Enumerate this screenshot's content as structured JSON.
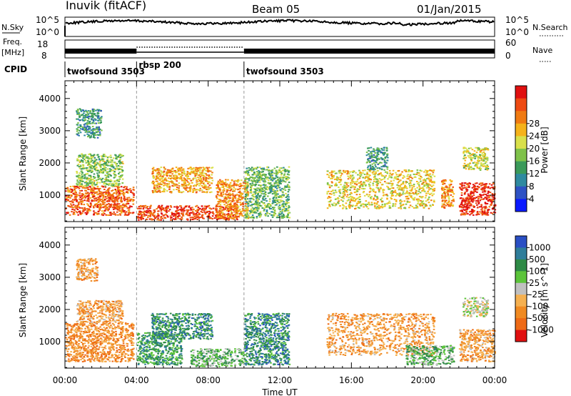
{
  "header": {
    "title": "Inuvik (fitACF)",
    "beam": "Beam 05",
    "date": "01/Jan/2015"
  },
  "noise_panel": {
    "left_label": "N.Sky",
    "left_top_tick": "10^5",
    "left_bottom_tick": "10^0",
    "right_label": "N.Search",
    "right_top_tick": "10^5",
    "right_bottom_tick": "10^0"
  },
  "freq_panel": {
    "left_label_line1": "Freq.",
    "left_label_line2": "[MHz]",
    "left_top_tick": "18",
    "left_bottom_tick": "8",
    "right_label": "Nave",
    "right_top_tick": "60",
    "right_bottom_tick": "0"
  },
  "cpid_panel": {
    "label": "CPID",
    "segments": [
      {
        "name": "twofsound 3503",
        "start_hour": 0,
        "end_hour": 4
      },
      {
        "name": "rbsp 200",
        "start_hour": 4,
        "end_hour": 10
      },
      {
        "name": "twofsound 3503",
        "start_hour": 10,
        "end_hour": 24
      }
    ]
  },
  "chart_data": [
    {
      "type": "heatmap",
      "quantity": "power",
      "ylabel": "Slant Range [km]",
      "xlabel": "Time UT",
      "xlim": [
        0,
        24
      ],
      "ylim": [
        180,
        4550
      ],
      "x_ticks": [
        "00:00",
        "04:00",
        "08:00",
        "12:00",
        "16:00",
        "20:00",
        "00:00"
      ],
      "y_ticks": [
        1000,
        2000,
        3000,
        4000
      ],
      "colorbar": {
        "label": "Power [dB]",
        "ticks": [
          "4",
          "8",
          "12",
          "16",
          "20",
          "24",
          "28"
        ],
        "colors": [
          "#0a1aff",
          "#2e52c4",
          "#2f8aa0",
          "#3b9a5a",
          "#7fc24a",
          "#d9e04a",
          "#f5b21a",
          "#f07a12",
          "#ee4a12",
          "#e01010"
        ]
      },
      "regions": [
        {
          "t_start": 0.0,
          "t_end": 3.8,
          "r_start": 400,
          "r_end": 1300,
          "level": 0.85
        },
        {
          "t_start": 0.6,
          "t_end": 3.2,
          "r_start": 1300,
          "r_end": 2300,
          "level": 0.45
        },
        {
          "t_start": 0.6,
          "t_end": 2.0,
          "r_start": 2800,
          "r_end": 3700,
          "level": 0.3
        },
        {
          "t_start": 4.0,
          "t_end": 9.6,
          "r_start": 250,
          "r_end": 700,
          "level": 0.9
        },
        {
          "t_start": 4.8,
          "t_end": 8.2,
          "r_start": 1100,
          "r_end": 1900,
          "level": 0.7
        },
        {
          "t_start": 8.4,
          "t_end": 10.2,
          "r_start": 300,
          "r_end": 1500,
          "level": 0.75
        },
        {
          "t_start": 10.0,
          "t_end": 12.5,
          "r_start": 300,
          "r_end": 1900,
          "level": 0.4
        },
        {
          "t_start": 14.6,
          "t_end": 20.6,
          "r_start": 600,
          "r_end": 1800,
          "level": 0.6
        },
        {
          "t_start": 16.8,
          "t_end": 18.0,
          "r_start": 1800,
          "r_end": 2500,
          "level": 0.3
        },
        {
          "t_start": 21.0,
          "t_end": 21.7,
          "r_start": 600,
          "r_end": 1500,
          "level": 0.75
        },
        {
          "t_start": 22.0,
          "t_end": 24.0,
          "r_start": 400,
          "r_end": 1400,
          "level": 0.95
        },
        {
          "t_start": 22.2,
          "t_end": 23.6,
          "r_start": 1800,
          "r_end": 2500,
          "level": 0.55
        }
      ]
    },
    {
      "type": "heatmap",
      "quantity": "velocity",
      "ylabel": "Slant Range [km]",
      "xlabel": "Time UT",
      "xlim": [
        0,
        24
      ],
      "ylim": [
        180,
        4550
      ],
      "x_ticks": [
        "00:00",
        "04:00",
        "08:00",
        "12:00",
        "16:00",
        "20:00",
        "00:00"
      ],
      "y_ticks": [
        1000,
        2000,
        3000,
        4000
      ],
      "colorbar": {
        "label": "Velocity [m s^-1]",
        "ticks": [
          "1000",
          "500",
          "100",
          "25",
          "-25",
          "-100",
          "-500",
          "-1000"
        ],
        "colors": [
          "#2a4fc4",
          "#2f7d9a",
          "#2e8a46",
          "#5bc43a",
          "#c0c0c0",
          "#f5b050",
          "#f08a22",
          "#ee6a16",
          "#e01010"
        ]
      },
      "regions": [
        {
          "t_start": 0.0,
          "t_end": 3.8,
          "r_start": 400,
          "r_end": 1600,
          "level": 0.75
        },
        {
          "t_start": 0.6,
          "t_end": 3.2,
          "r_start": 1600,
          "r_end": 2300,
          "level": 0.7
        },
        {
          "t_start": 0.6,
          "t_end": 1.8,
          "r_start": 2900,
          "r_end": 3600,
          "level": 0.7
        },
        {
          "t_start": 4.0,
          "t_end": 6.5,
          "r_start": 300,
          "r_end": 1300,
          "level": 0.25
        },
        {
          "t_start": 4.8,
          "t_end": 8.2,
          "r_start": 1100,
          "r_end": 1900,
          "level": 0.2
        },
        {
          "t_start": 7.0,
          "t_end": 10.0,
          "r_start": 250,
          "r_end": 800,
          "level": 0.35
        },
        {
          "t_start": 10.0,
          "t_end": 12.5,
          "r_start": 300,
          "r_end": 1900,
          "level": 0.2
        },
        {
          "t_start": 14.6,
          "t_end": 20.6,
          "r_start": 600,
          "r_end": 1900,
          "level": 0.7
        },
        {
          "t_start": 19.0,
          "t_end": 21.7,
          "r_start": 300,
          "r_end": 900,
          "level": 0.35
        },
        {
          "t_start": 22.0,
          "t_end": 24.0,
          "r_start": 400,
          "r_end": 1400,
          "level": 0.7
        },
        {
          "t_start": 22.2,
          "t_end": 23.6,
          "r_start": 1800,
          "r_end": 2400,
          "level": 0.5
        }
      ]
    }
  ]
}
